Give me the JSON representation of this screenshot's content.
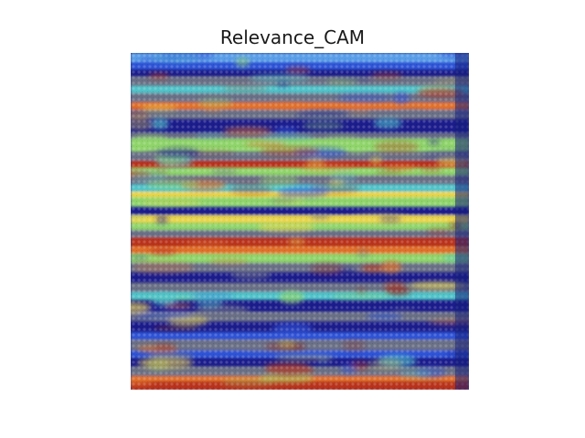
{
  "figure": {
    "title": "Relevance_CAM"
  },
  "image": {
    "description_colormap": "jet",
    "colors": {
      "dark_blue": "#1a1f8c",
      "blue": "#2f52d6",
      "light_blue": "#5a9ee8",
      "cyan": "#4fc3c9",
      "green": "#8fd46a",
      "yellow": "#e8d44a",
      "orange": "#e0702a",
      "red": "#b8321c",
      "dark_red": "#8a1f18",
      "gray": "#6b6f86"
    }
  }
}
